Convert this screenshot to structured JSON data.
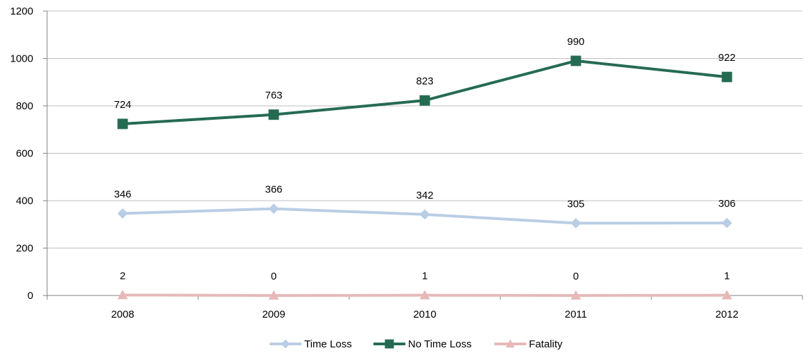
{
  "chart_data": {
    "type": "line",
    "title": "",
    "xlabel": "",
    "ylabel": "",
    "categories": [
      "2008",
      "2009",
      "2010",
      "2011",
      "2012"
    ],
    "ylim": [
      0,
      1200
    ],
    "yticks": [
      0,
      200,
      400,
      600,
      800,
      1000,
      1200
    ],
    "grid": true,
    "legend_position": "bottom",
    "series": [
      {
        "name": "Time Loss",
        "values": [
          346,
          366,
          342,
          305,
          306
        ],
        "color": "#B9CDE5",
        "marker": "diamond"
      },
      {
        "name": "No Time Loss",
        "values": [
          724,
          763,
          823,
          990,
          922
        ],
        "color": "#256B52",
        "marker": "square"
      },
      {
        "name": "Fatality",
        "values": [
          2,
          0,
          1,
          0,
          1
        ],
        "color": "#E6B9B8",
        "marker": "triangle"
      }
    ]
  }
}
